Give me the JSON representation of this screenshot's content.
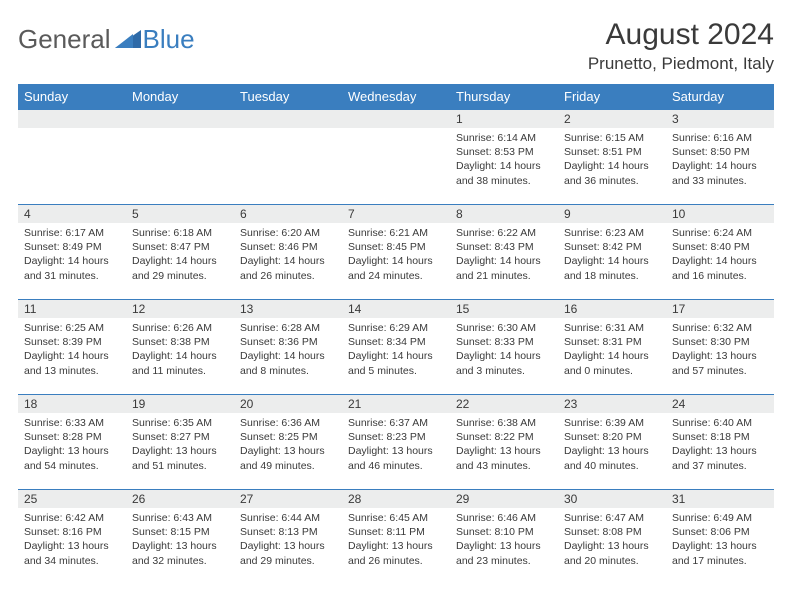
{
  "brand": {
    "part1": "General",
    "part2": "Blue"
  },
  "title": "August 2024",
  "location": "Prunetto, Piedmont, Italy",
  "colors": {
    "header_bg": "#3a7ebf",
    "header_text": "#ffffff",
    "daynum_bg": "#eceded",
    "border": "#3a7ebf",
    "text": "#3a3a3a",
    "page_bg": "#ffffff"
  },
  "typography": {
    "title_fontsize": 30,
    "subtitle_fontsize": 17,
    "dayheader_fontsize": 13,
    "daynum_fontsize": 12,
    "info_fontsize": 10.5
  },
  "dayHeaders": [
    "Sunday",
    "Monday",
    "Tuesday",
    "Wednesday",
    "Thursday",
    "Friday",
    "Saturday"
  ],
  "weeks": [
    [
      null,
      null,
      null,
      null,
      {
        "n": "1",
        "sr": "6:14 AM",
        "ss": "8:53 PM",
        "dl": "14 hours and 38 minutes."
      },
      {
        "n": "2",
        "sr": "6:15 AM",
        "ss": "8:51 PM",
        "dl": "14 hours and 36 minutes."
      },
      {
        "n": "3",
        "sr": "6:16 AM",
        "ss": "8:50 PM",
        "dl": "14 hours and 33 minutes."
      }
    ],
    [
      {
        "n": "4",
        "sr": "6:17 AM",
        "ss": "8:49 PM",
        "dl": "14 hours and 31 minutes."
      },
      {
        "n": "5",
        "sr": "6:18 AM",
        "ss": "8:47 PM",
        "dl": "14 hours and 29 minutes."
      },
      {
        "n": "6",
        "sr": "6:20 AM",
        "ss": "8:46 PM",
        "dl": "14 hours and 26 minutes."
      },
      {
        "n": "7",
        "sr": "6:21 AM",
        "ss": "8:45 PM",
        "dl": "14 hours and 24 minutes."
      },
      {
        "n": "8",
        "sr": "6:22 AM",
        "ss": "8:43 PM",
        "dl": "14 hours and 21 minutes."
      },
      {
        "n": "9",
        "sr": "6:23 AM",
        "ss": "8:42 PM",
        "dl": "14 hours and 18 minutes."
      },
      {
        "n": "10",
        "sr": "6:24 AM",
        "ss": "8:40 PM",
        "dl": "14 hours and 16 minutes."
      }
    ],
    [
      {
        "n": "11",
        "sr": "6:25 AM",
        "ss": "8:39 PM",
        "dl": "14 hours and 13 minutes."
      },
      {
        "n": "12",
        "sr": "6:26 AM",
        "ss": "8:38 PM",
        "dl": "14 hours and 11 minutes."
      },
      {
        "n": "13",
        "sr": "6:28 AM",
        "ss": "8:36 PM",
        "dl": "14 hours and 8 minutes."
      },
      {
        "n": "14",
        "sr": "6:29 AM",
        "ss": "8:34 PM",
        "dl": "14 hours and 5 minutes."
      },
      {
        "n": "15",
        "sr": "6:30 AM",
        "ss": "8:33 PM",
        "dl": "14 hours and 3 minutes."
      },
      {
        "n": "16",
        "sr": "6:31 AM",
        "ss": "8:31 PM",
        "dl": "14 hours and 0 minutes."
      },
      {
        "n": "17",
        "sr": "6:32 AM",
        "ss": "8:30 PM",
        "dl": "13 hours and 57 minutes."
      }
    ],
    [
      {
        "n": "18",
        "sr": "6:33 AM",
        "ss": "8:28 PM",
        "dl": "13 hours and 54 minutes."
      },
      {
        "n": "19",
        "sr": "6:35 AM",
        "ss": "8:27 PM",
        "dl": "13 hours and 51 minutes."
      },
      {
        "n": "20",
        "sr": "6:36 AM",
        "ss": "8:25 PM",
        "dl": "13 hours and 49 minutes."
      },
      {
        "n": "21",
        "sr": "6:37 AM",
        "ss": "8:23 PM",
        "dl": "13 hours and 46 minutes."
      },
      {
        "n": "22",
        "sr": "6:38 AM",
        "ss": "8:22 PM",
        "dl": "13 hours and 43 minutes."
      },
      {
        "n": "23",
        "sr": "6:39 AM",
        "ss": "8:20 PM",
        "dl": "13 hours and 40 minutes."
      },
      {
        "n": "24",
        "sr": "6:40 AM",
        "ss": "8:18 PM",
        "dl": "13 hours and 37 minutes."
      }
    ],
    [
      {
        "n": "25",
        "sr": "6:42 AM",
        "ss": "8:16 PM",
        "dl": "13 hours and 34 minutes."
      },
      {
        "n": "26",
        "sr": "6:43 AM",
        "ss": "8:15 PM",
        "dl": "13 hours and 32 minutes."
      },
      {
        "n": "27",
        "sr": "6:44 AM",
        "ss": "8:13 PM",
        "dl": "13 hours and 29 minutes."
      },
      {
        "n": "28",
        "sr": "6:45 AM",
        "ss": "8:11 PM",
        "dl": "13 hours and 26 minutes."
      },
      {
        "n": "29",
        "sr": "6:46 AM",
        "ss": "8:10 PM",
        "dl": "13 hours and 23 minutes."
      },
      {
        "n": "30",
        "sr": "6:47 AM",
        "ss": "8:08 PM",
        "dl": "13 hours and 20 minutes."
      },
      {
        "n": "31",
        "sr": "6:49 AM",
        "ss": "8:06 PM",
        "dl": "13 hours and 17 minutes."
      }
    ]
  ],
  "labels": {
    "sunrise": "Sunrise:",
    "sunset": "Sunset:",
    "daylight": "Daylight:"
  }
}
